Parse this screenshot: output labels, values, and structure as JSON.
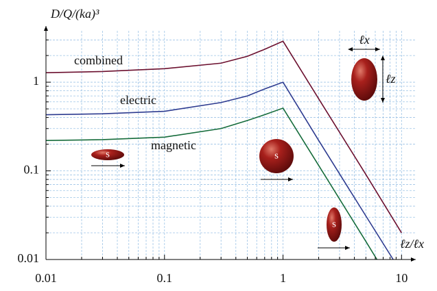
{
  "chart_data": {
    "type": "line",
    "ylabel": "D/Q/(ka)³",
    "xlabel": "ℓz/ℓx",
    "log_x": true,
    "log_y": true,
    "grid": true,
    "xlim": [
      0.01,
      13
    ],
    "ylim": [
      0.01,
      3.8
    ],
    "xticks": [
      0.01,
      0.1,
      1,
      10
    ],
    "yticks": [
      0.01,
      0.1,
      1
    ],
    "series": [
      {
        "name": "combined",
        "color": "#6b0f2e",
        "x": [
          0.01,
          0.03,
          0.1,
          0.3,
          0.5,
          0.7,
          1,
          2,
          5,
          10
        ],
        "values": [
          1.28,
          1.32,
          1.42,
          1.64,
          1.96,
          2.35,
          2.9,
          0.65,
          0.091,
          0.02
        ]
      },
      {
        "name": "electric",
        "color": "#2c3a8f",
        "x": [
          0.01,
          0.03,
          0.1,
          0.3,
          0.5,
          0.7,
          1,
          2,
          5,
          8.5
        ],
        "values": [
          0.43,
          0.44,
          0.47,
          0.59,
          0.7,
          0.84,
          1,
          0.22,
          0.031,
          0.01
        ]
      },
      {
        "name": "magnetic",
        "color": "#146b3a",
        "x": [
          0.01,
          0.03,
          0.1,
          0.3,
          0.5,
          0.7,
          1,
          2,
          5,
          6.2
        ],
        "values": [
          0.22,
          0.225,
          0.24,
          0.3,
          0.37,
          0.43,
          0.51,
          0.115,
          0.016,
          0.01
        ]
      }
    ],
    "shape_label": "s",
    "width_label": "ℓx",
    "height_label": "ℓz"
  }
}
